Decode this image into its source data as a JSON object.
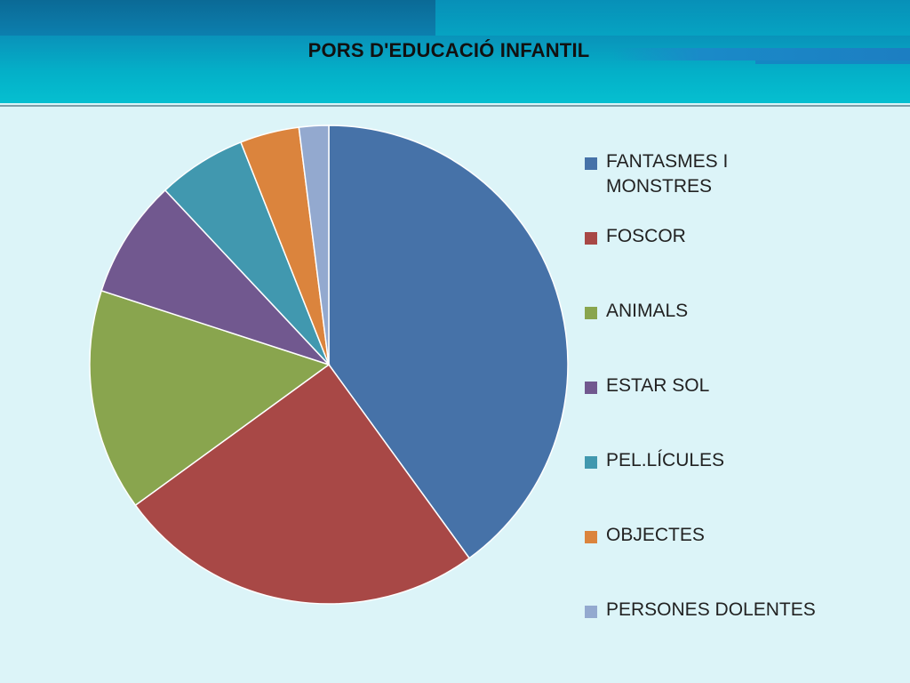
{
  "header": {
    "title": "PORS D'EDUCACIÓ INFANTIL"
  },
  "colors": {
    "banner": "#05bfd0",
    "background": "#dcf4f8"
  },
  "chart_data": {
    "type": "pie",
    "title": "PORS D'EDUCACIÓ INFANTIL",
    "legend_position": "right",
    "categories": [
      "FANTASMES I MONSTRES",
      "FOSCOR",
      "ANIMALS",
      "ESTAR SOL",
      "PEL.LÍCULES",
      "OBJECTES",
      "PERSONES DOLENTES"
    ],
    "values": [
      40,
      25,
      15,
      8,
      6,
      4,
      2
    ],
    "colors": [
      "#4672a8",
      "#a84846",
      "#89a54e",
      "#71588f",
      "#4198af",
      "#db843d",
      "#93a9cf"
    ]
  }
}
